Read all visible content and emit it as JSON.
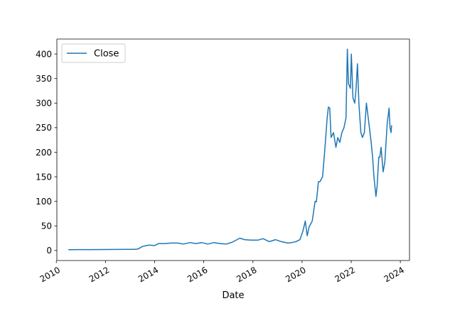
{
  "chart_data": {
    "type": "line",
    "xlabel": "Date",
    "ylabel": "",
    "title": "",
    "legend": {
      "placement": "top-left",
      "entries": [
        "Close"
      ]
    },
    "grid": false,
    "xlim": [
      "2010-01-09",
      "2024-05-16"
    ],
    "ylim": [
      -20.5,
      430.5
    ],
    "x_ticks": [
      "2010",
      "2012",
      "2014",
      "2016",
      "2018",
      "2020",
      "2022",
      "2024"
    ],
    "y_ticks": [
      "0",
      "50",
      "100",
      "150",
      "200",
      "250",
      "300",
      "350",
      "400"
    ],
    "series": [
      {
        "name": "Close",
        "color": "#1f77b4",
        "x": [
          "2010-06-29",
          "2010-12-01",
          "2011-06-01",
          "2011-12-01",
          "2012-06-01",
          "2012-12-01",
          "2013-03-01",
          "2013-05-01",
          "2013-07-01",
          "2013-09-01",
          "2013-10-15",
          "2014-01-01",
          "2014-03-01",
          "2014-06-01",
          "2014-09-01",
          "2014-12-15",
          "2015-03-01",
          "2015-06-15",
          "2015-09-01",
          "2015-12-01",
          "2016-03-01",
          "2016-06-01",
          "2016-09-01",
          "2016-12-01",
          "2017-03-01",
          "2017-06-20",
          "2017-09-01",
          "2017-12-01",
          "2018-03-15",
          "2018-06-01",
          "2018-09-01",
          "2018-12-01",
          "2019-03-01",
          "2019-06-01",
          "2019-08-01",
          "2019-10-01",
          "2019-12-01",
          "2020-01-15",
          "2020-02-18",
          "2020-03-18",
          "2020-04-15",
          "2020-06-01",
          "2020-07-13",
          "2020-08-01",
          "2020-08-31",
          "2020-09-23",
          "2020-11-01",
          "2020-12-01",
          "2021-01-08",
          "2021-01-26",
          "2021-02-15",
          "2021-03-08",
          "2021-04-12",
          "2021-05-18",
          "2021-06-15",
          "2021-07-15",
          "2021-08-15",
          "2021-09-15",
          "2021-10-15",
          "2021-11-04",
          "2021-11-20",
          "2021-12-20",
          "2022-01-03",
          "2022-01-27",
          "2022-02-22",
          "2022-03-14",
          "2022-04-04",
          "2022-04-25",
          "2022-05-24",
          "2022-06-16",
          "2022-07-15",
          "2022-08-15",
          "2022-09-20",
          "2022-10-24",
          "2022-11-15",
          "2022-12-05",
          "2023-01-03",
          "2023-01-20",
          "2023-02-15",
          "2023-03-01",
          "2023-03-20",
          "2023-04-20",
          "2023-05-15",
          "2023-06-20",
          "2023-07-18",
          "2023-08-01",
          "2023-08-15",
          "2023-08-25"
        ],
        "y": [
          1.6,
          1.7,
          1.8,
          1.9,
          2.0,
          2.2,
          2.4,
          3.1,
          8,
          10,
          11,
          10,
          14,
          14,
          15,
          15,
          13,
          16,
          14,
          16,
          13,
          16,
          14,
          13,
          17,
          25,
          22,
          21,
          21,
          24,
          18,
          22,
          18,
          15,
          16,
          18,
          22,
          40,
          60,
          30,
          48,
          60,
          100,
          99,
          140,
          140,
          150,
          200,
          270,
          292,
          290,
          230,
          240,
          210,
          230,
          220,
          240,
          250,
          270,
          410,
          340,
          330,
          400,
          310,
          300,
          330,
          380,
          300,
          240,
          230,
          240,
          300,
          260,
          220,
          190,
          150,
          110,
          130,
          190,
          190,
          210,
          160,
          180,
          260,
          290,
          250,
          240,
          255
        ]
      }
    ]
  }
}
